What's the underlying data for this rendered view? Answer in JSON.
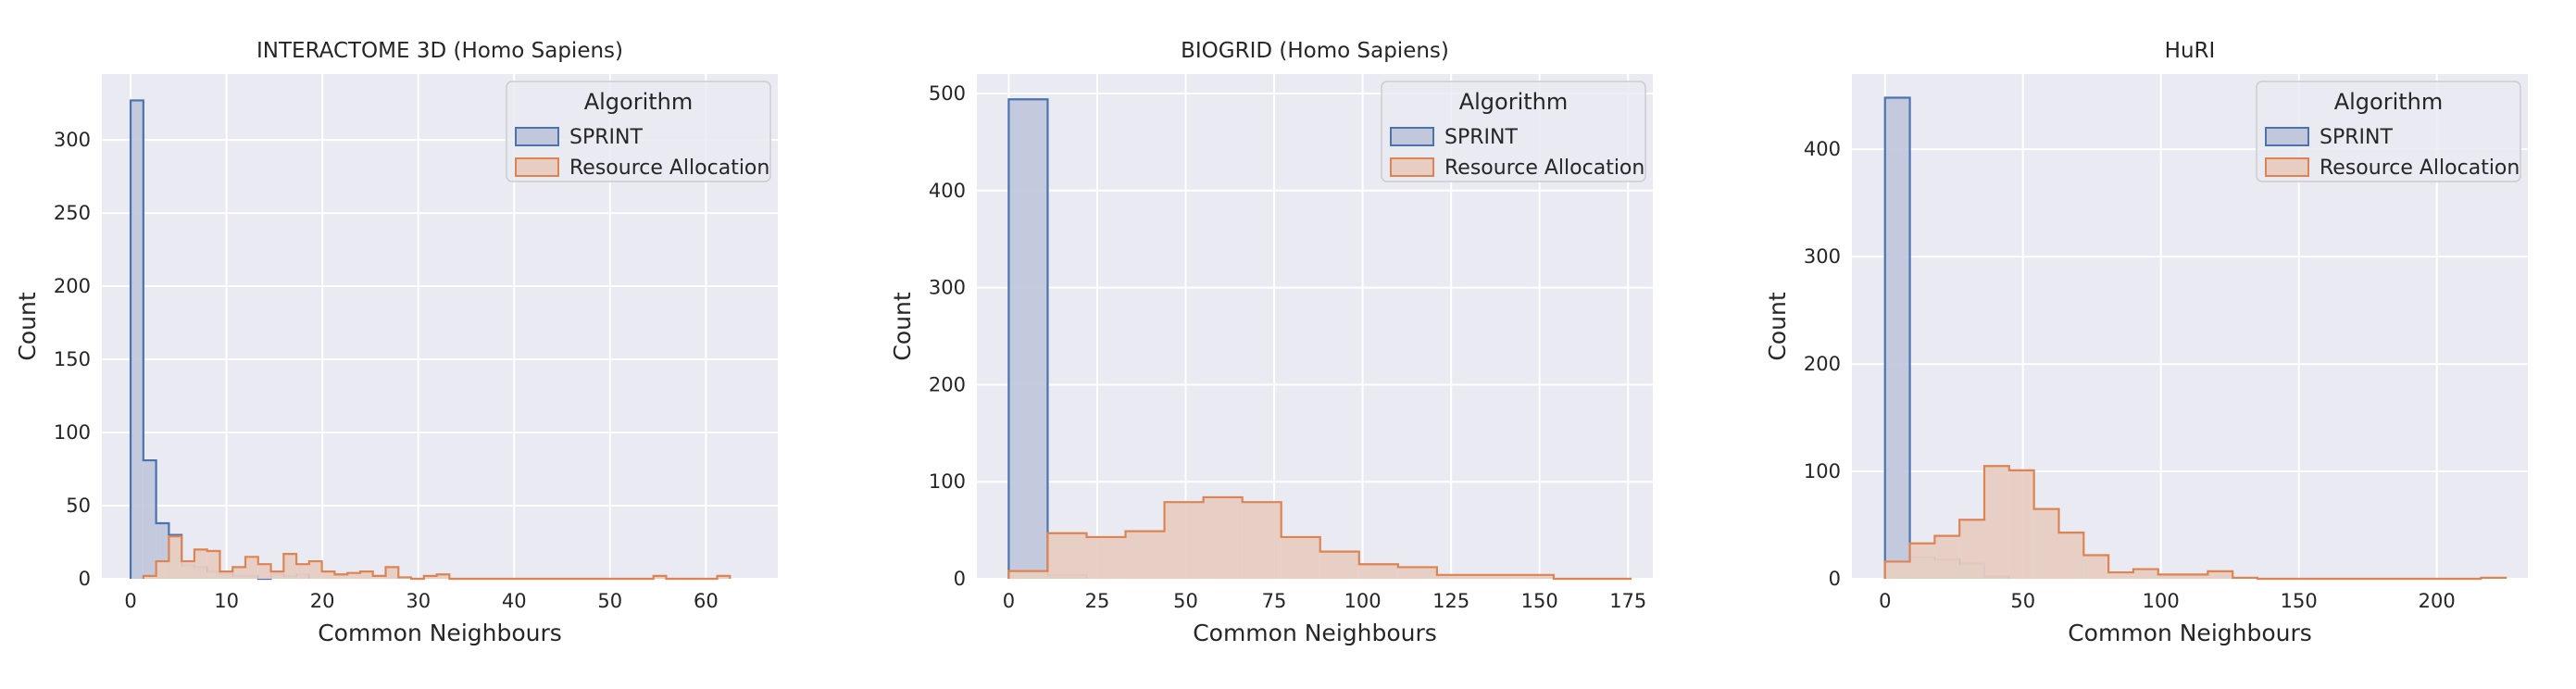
{
  "style": {
    "plot_background": "#eaeaf2",
    "grid_color": "#ffffff",
    "sprint_fill": "#c2c8dc",
    "sprint_edge": "#4c72b0",
    "ra_fill": "#e7cdc2",
    "ra_edge": "#dd8452"
  },
  "legend": {
    "title": "Algorithm",
    "entries": [
      {
        "label": "SPRINT",
        "key": "sprint"
      },
      {
        "label": "Resource Allocation",
        "key": "ra"
      }
    ]
  },
  "chart_data": [
    {
      "type": "histogram",
      "title": "INTERACTOME 3D (Homo Sapiens)",
      "xlabel": "Common Neighbours",
      "ylabel": "Count",
      "xlim": [
        -3,
        67.5
      ],
      "ylim": [
        0,
        345
      ],
      "xticks": [
        0,
        10,
        20,
        30,
        40,
        50,
        60
      ],
      "yticks": [
        0,
        50,
        100,
        150,
        200,
        250,
        300
      ],
      "grid": true,
      "legend_position": "top-right",
      "series": [
        {
          "name": "SPRINT",
          "key": "sprint",
          "bin_start": 0,
          "bin_width": 1.33,
          "counts": [
            327,
            81,
            38,
            30,
            9,
            8,
            5,
            3,
            2,
            2,
            0,
            3,
            2,
            3
          ]
        },
        {
          "name": "Resource Allocation",
          "key": "ra",
          "bin_start": 1.33,
          "bin_width": 1.33,
          "counts": [
            2,
            12,
            29,
            12,
            20,
            19,
            5,
            8,
            15,
            10,
            5,
            17,
            10,
            12,
            5,
            3,
            4,
            5,
            2,
            8,
            1,
            0,
            2,
            3,
            0,
            0,
            0,
            0,
            0,
            0,
            0,
            0,
            0,
            0,
            0,
            0,
            0,
            0,
            0,
            0,
            2,
            0,
            0,
            0,
            0,
            2
          ]
        }
      ]
    },
    {
      "type": "histogram",
      "title": "BIOGRID (Homo Sapiens)",
      "xlabel": "Common Neighbours",
      "ylabel": "Count",
      "xlim": [
        -9,
        182
      ],
      "ylim": [
        0,
        520
      ],
      "xticks": [
        0,
        25,
        50,
        75,
        100,
        125,
        150,
        175
      ],
      "yticks": [
        0,
        100,
        200,
        300,
        400,
        500
      ],
      "grid": true,
      "legend_position": "top-right",
      "series": [
        {
          "name": "SPRINT",
          "key": "sprint",
          "bin_start": 0,
          "bin_width": 11,
          "counts": [
            494,
            4
          ]
        },
        {
          "name": "Resource Allocation",
          "key": "ra",
          "bin_start": 0,
          "bin_width": 11,
          "counts": [
            8,
            47,
            43,
            49,
            79,
            84,
            79,
            43,
            28,
            15,
            12,
            4,
            4,
            4,
            0,
            0
          ]
        }
      ]
    },
    {
      "type": "histogram",
      "title": "HuRI",
      "xlabel": "Common Neighbours",
      "ylabel": "Count",
      "xlim": [
        -12,
        233
      ],
      "ylim": [
        0,
        470
      ],
      "xticks": [
        0,
        50,
        100,
        150,
        200
      ],
      "yticks": [
        0,
        100,
        200,
        300,
        400
      ],
      "grid": true,
      "legend_position": "top-right",
      "series": [
        {
          "name": "SPRINT",
          "key": "sprint",
          "bin_start": 0,
          "bin_width": 9,
          "counts": [
            448,
            20,
            18,
            14,
            2
          ]
        },
        {
          "name": "Resource Allocation",
          "key": "ra",
          "bin_start": 0,
          "bin_width": 9,
          "counts": [
            16,
            33,
            40,
            55,
            105,
            101,
            65,
            43,
            22,
            6,
            9,
            4,
            4,
            7,
            1,
            0,
            0,
            0,
            0,
            0,
            0,
            0,
            0,
            0,
            1
          ]
        }
      ]
    }
  ]
}
